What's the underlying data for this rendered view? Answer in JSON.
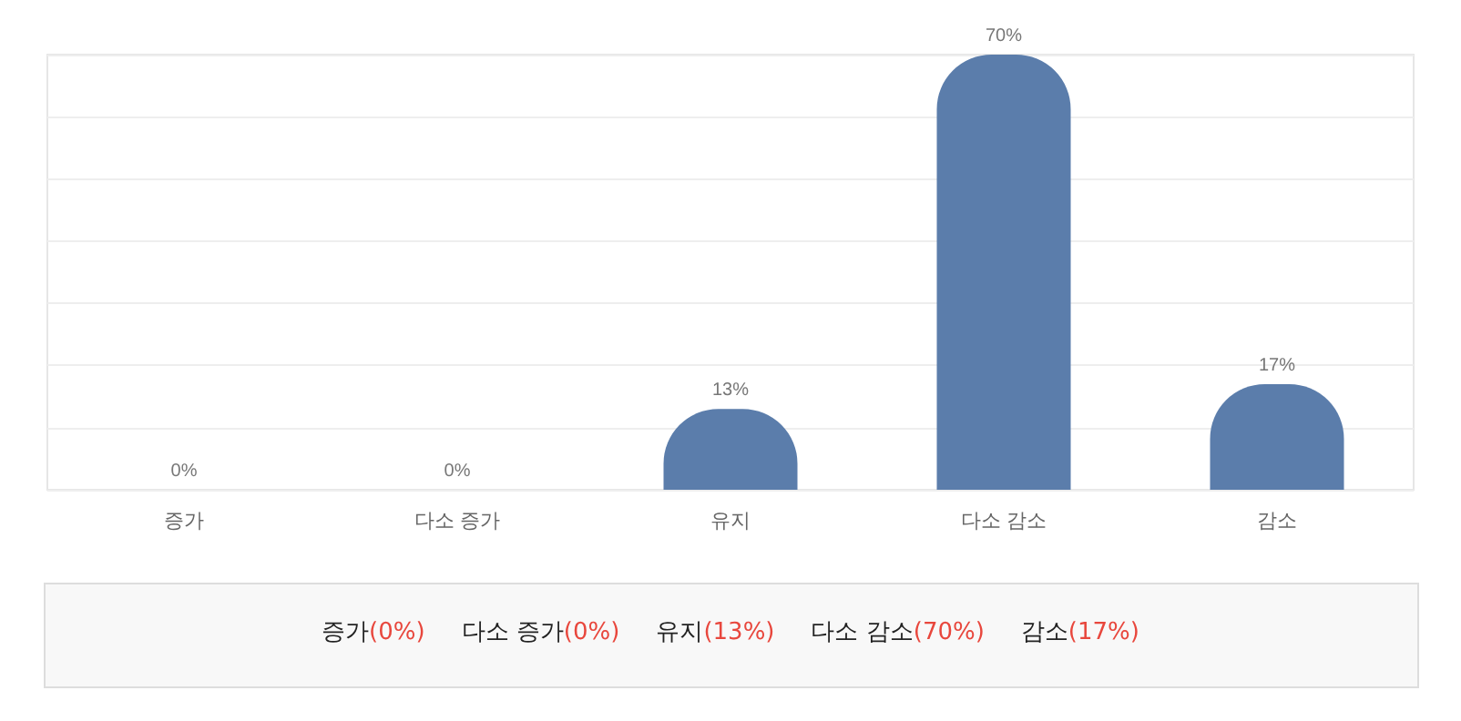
{
  "chart_data": {
    "type": "bar",
    "categories": [
      "증가",
      "다소 증가",
      "유지",
      "다소 감소",
      "감소"
    ],
    "values": [
      0,
      0,
      13,
      70,
      17
    ],
    "value_labels": [
      "0%",
      "0%",
      "13%",
      "70%",
      "17%"
    ],
    "color": "#5b7dab",
    "ylim": [
      0,
      70
    ],
    "yticks": [
      0,
      10,
      20,
      30,
      40,
      50,
      60,
      70
    ],
    "tick_labels": "x",
    "grid": "y",
    "annotations": [
      "증가(0%)",
      "다소 증가(0%)",
      "유지(13%)",
      "다소 감소(70%)",
      "감소(17%)"
    ]
  }
}
